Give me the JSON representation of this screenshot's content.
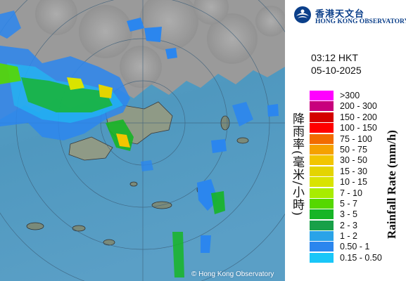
{
  "map": {
    "copyright": "© Hong Kong Observatory"
  },
  "header": {
    "logo_cn": "香港天文台",
    "logo_en": "HONG KONG OBSERVATORY"
  },
  "timestamp": {
    "time": "03:12 HKT",
    "date": "05-10-2025"
  },
  "legend": {
    "unit_cn": "降雨率(毫米/小時)",
    "unit_en": "Rainfall Rate (mm/h)",
    "items": [
      {
        "label": ">300",
        "color": "#ff00ff"
      },
      {
        "label": "200 - 300",
        "color": "#c8007d"
      },
      {
        "label": "150 - 200",
        "color": "#d40000"
      },
      {
        "label": "100 - 150",
        "color": "#ff0000"
      },
      {
        "label": "75 - 100",
        "color": "#f26b00"
      },
      {
        "label": "50 - 75",
        "color": "#f5a100"
      },
      {
        "label": "30 - 50",
        "color": "#f2c500"
      },
      {
        "label": "15 - 30",
        "color": "#e4d400"
      },
      {
        "label": "10 - 15",
        "color": "#d9e300"
      },
      {
        "label": "7 - 10",
        "color": "#a8ec00"
      },
      {
        "label": "5 - 7",
        "color": "#55d800"
      },
      {
        "label": "3 - 5",
        "color": "#17b526"
      },
      {
        "label": "2 - 3",
        "color": "#18a048"
      },
      {
        "label": "1 - 2",
        "color": "#2aa3e8"
      },
      {
        "label": "0.50 - 1",
        "color": "#2b86ee"
      },
      {
        "label": "0.15 - 0.50",
        "color": "#19c6f8"
      }
    ]
  }
}
